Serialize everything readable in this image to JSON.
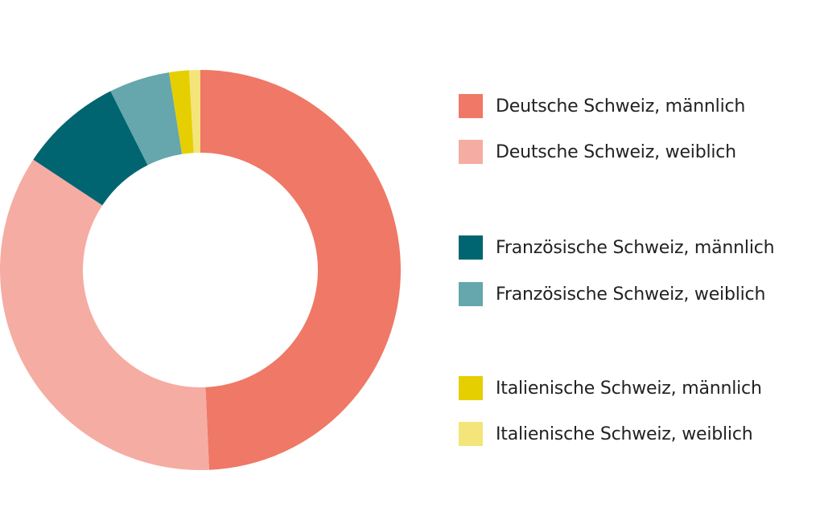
{
  "chart_data": {
    "type": "pie",
    "variant": "donut",
    "series": [
      {
        "name": "Deutsche Schweiz, männlich",
        "value": 49.3,
        "color": "#ef7866"
      },
      {
        "name": "Deutsche Schweiz, weiblich",
        "value": 35.0,
        "color": "#f5aca3"
      },
      {
        "name": "Französische Schweiz, männlich",
        "value": 8.3,
        "color": "#006570"
      },
      {
        "name": "Französische Schweiz, weiblich",
        "value": 4.9,
        "color": "#66a6ad"
      },
      {
        "name": "Italienische Schweiz, männlich",
        "value": 1.6,
        "color": "#e5cf00"
      },
      {
        "name": "Italienische Schweiz, weiblich",
        "value": 0.9,
        "color": "#f3e57a"
      }
    ],
    "legend_position": "right"
  }
}
